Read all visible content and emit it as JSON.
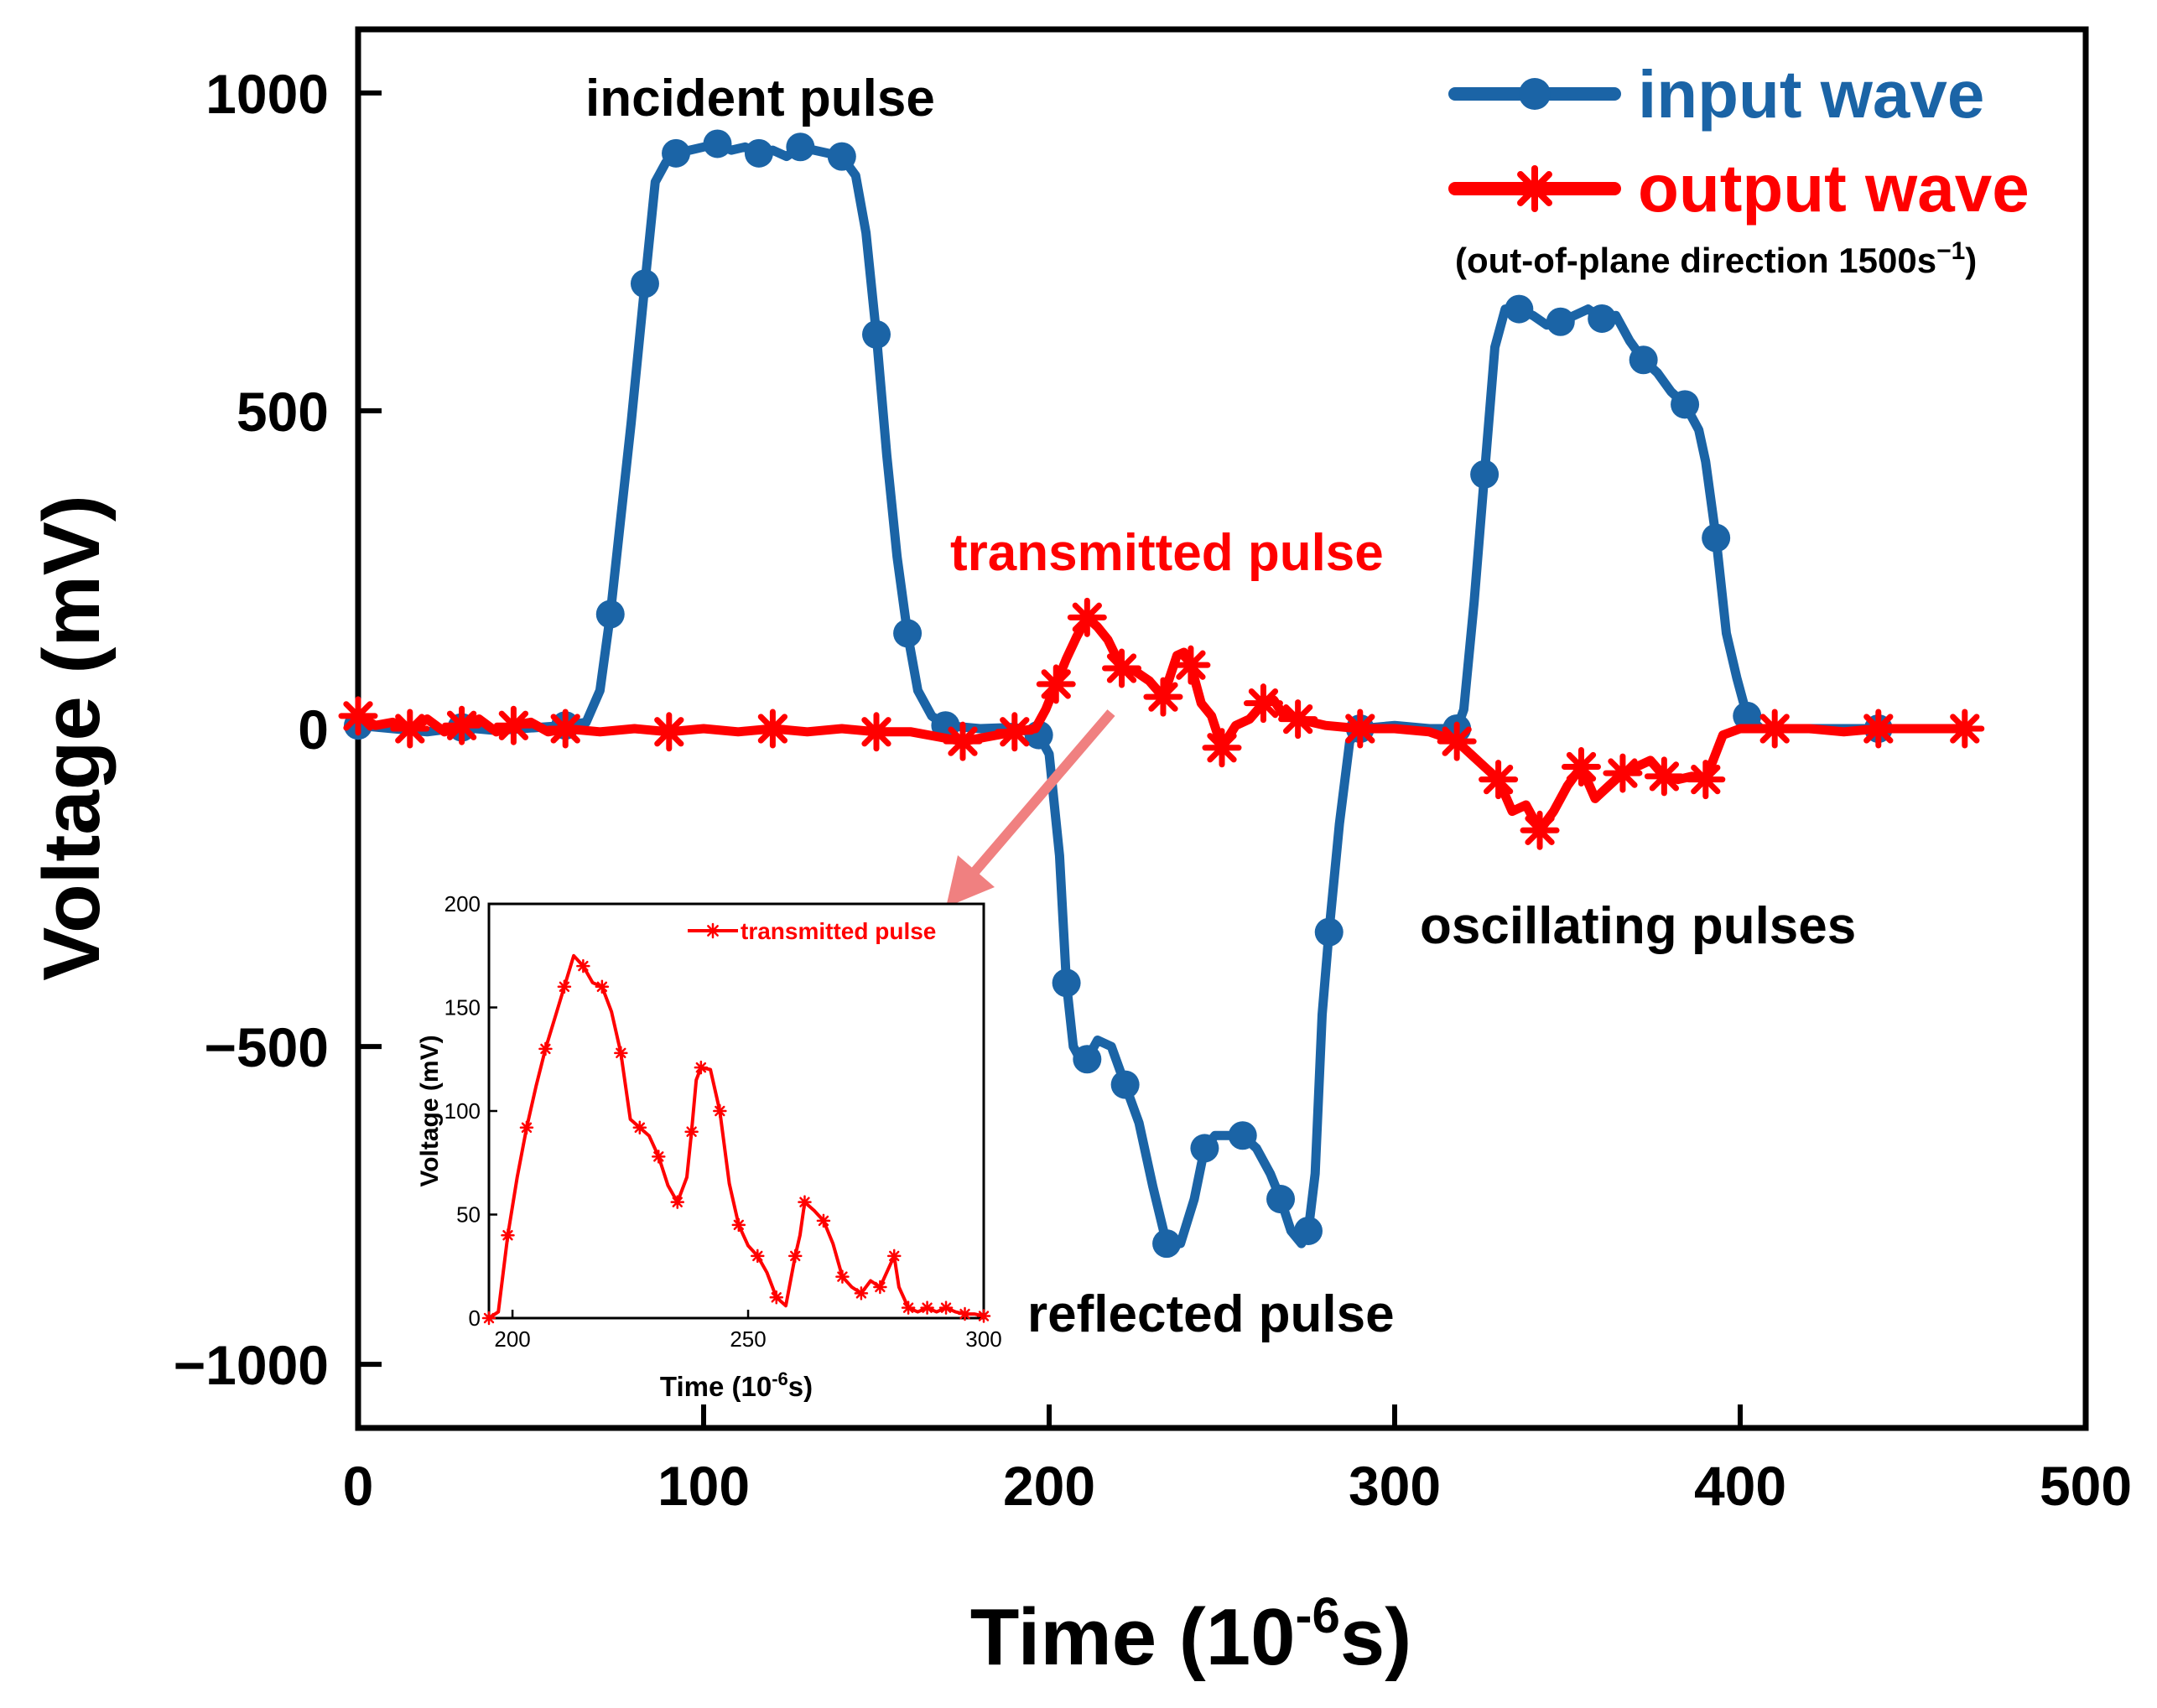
{
  "chart_data": {
    "type": "line",
    "xlabel": "Time (10",
    "xlabel_sup": "-6",
    "xlabel_tail": "s)",
    "ylabel": "Voltage (mV)",
    "xlim": [
      0,
      500
    ],
    "ylim": [
      -1100,
      1100
    ],
    "xticks": [
      0,
      100,
      200,
      300,
      400,
      500
    ],
    "yticks": [
      -1000,
      -500,
      0,
      500,
      1000
    ],
    "xtick_labels": [
      "0",
      "100",
      "200",
      "300",
      "400",
      "500"
    ],
    "ytick_labels": [
      "−1000",
      "−500",
      "0",
      "500",
      "1000"
    ],
    "legend": {
      "position": "top-right",
      "note": "(out-of-plane direction 1500s",
      "note_sup": "−1",
      "note_tail": ")"
    },
    "annotations": {
      "incident": "incident pulse",
      "transmitted": "transmitted pulse",
      "reflected": "reflected pulse",
      "oscillating": "oscillating pulses"
    },
    "series": [
      {
        "name": "input wave",
        "color": "#1b64a6",
        "marker": "circle",
        "x": [
          0,
          10,
          20,
          30,
          40,
          50,
          60,
          66,
          70,
          73,
          76,
          79,
          83,
          86,
          89,
          92,
          96,
          100,
          104,
          108,
          112,
          116,
          120,
          124,
          128,
          132,
          136,
          140,
          144,
          147,
          150,
          153,
          156,
          159,
          162,
          166,
          170,
          180,
          190,
          197,
          200,
          203,
          205,
          207,
          209,
          211,
          214,
          218,
          222,
          226,
          230,
          234,
          238,
          242,
          245,
          248,
          252,
          256,
          260,
          264,
          267,
          270,
          273,
          275,
          277,
          279,
          281,
          284,
          287,
          290,
          300,
          310,
          318,
          320,
          323,
          326,
          329,
          332,
          336,
          340,
          344,
          348,
          352,
          356,
          360,
          364,
          368,
          372,
          376,
          380,
          384,
          388,
          390,
          393,
          396,
          399,
          402,
          406,
          420,
          440,
          460
        ],
        "y": [
          5,
          0,
          -5,
          2,
          -3,
          1,
          5,
          10,
          60,
          180,
          330,
          480,
          700,
          860,
          890,
          905,
          910,
          915,
          920,
          910,
          915,
          905,
          910,
          900,
          915,
          910,
          905,
          900,
          870,
          780,
          620,
          430,
          270,
          150,
          60,
          20,
          5,
          0,
          2,
          -10,
          -40,
          -200,
          -400,
          -500,
          -520,
          -520,
          -490,
          -500,
          -560,
          -620,
          -720,
          -810,
          -810,
          -740,
          -660,
          -640,
          -640,
          -640,
          -660,
          -700,
          -740,
          -790,
          -810,
          -790,
          -700,
          -450,
          -320,
          -150,
          -20,
          0,
          5,
          0,
          0,
          30,
          200,
          400,
          600,
          660,
          660,
          650,
          635,
          640,
          650,
          660,
          645,
          650,
          610,
          580,
          560,
          530,
          510,
          470,
          420,
          300,
          150,
          80,
          20,
          0,
          0,
          0,
          0
        ]
      },
      {
        "name": "output wave",
        "color": "#ff0000",
        "marker": "asterisk",
        "x": [
          0,
          5,
          10,
          15,
          20,
          25,
          30,
          35,
          40,
          45,
          50,
          55,
          60,
          70,
          80,
          90,
          100,
          110,
          120,
          130,
          140,
          150,
          160,
          170,
          175,
          180,
          185,
          190,
          196,
          199,
          202,
          205,
          208,
          211,
          214,
          217,
          221,
          225,
          229,
          233,
          237,
          239,
          241,
          244,
          247,
          250,
          254,
          258,
          262,
          265,
          268,
          272,
          276,
          280,
          290,
          300,
          310,
          318,
          322,
          326,
          330,
          334,
          338,
          342,
          346,
          350,
          354,
          358,
          362,
          366,
          370,
          374,
          378,
          382,
          386,
          390,
          395,
          400,
          410,
          420,
          430,
          440,
          450,
          460,
          465
        ],
        "y": [
          20,
          5,
          10,
          0,
          15,
          -5,
          5,
          15,
          -5,
          5,
          10,
          -5,
          0,
          -5,
          0,
          -5,
          0,
          -5,
          0,
          -5,
          0,
          -5,
          -5,
          -15,
          -20,
          -15,
          -10,
          -5,
          0,
          30,
          70,
          110,
          145,
          175,
          160,
          140,
          95,
          90,
          75,
          50,
          115,
          120,
          100,
          40,
          20,
          -30,
          5,
          15,
          40,
          45,
          20,
          15,
          10,
          5,
          0,
          0,
          -5,
          -20,
          -40,
          -60,
          -80,
          -130,
          -120,
          -160,
          -130,
          -90,
          -60,
          -110,
          -90,
          -70,
          -60,
          -50,
          -75,
          -80,
          -75,
          -80,
          -10,
          0,
          0,
          0,
          -5,
          0,
          0,
          0,
          0
        ]
      }
    ],
    "inset": {
      "type": "line",
      "series_name": "transmitted pulse",
      "xlabel": "Time (10",
      "xlabel_sup": "-6",
      "xlabel_tail": "s)",
      "ylabel": "Voltage (mV)",
      "xlim": [
        195,
        300
      ],
      "ylim": [
        0,
        200
      ],
      "xticks": [
        200,
        250,
        300
      ],
      "yticks": [
        0,
        50,
        100,
        150,
        200
      ],
      "xtick_labels": [
        "200",
        "250",
        "300"
      ],
      "ytick_labels": [
        "0",
        "50",
        "100",
        "150",
        "200"
      ],
      "x": [
        195,
        197,
        199,
        201,
        203,
        205,
        207,
        209,
        211,
        213,
        215,
        217,
        219,
        221,
        223,
        225,
        227,
        229,
        231,
        233,
        235,
        237,
        238,
        239,
        240,
        242,
        244,
        246,
        248,
        250,
        252,
        254,
        256,
        258,
        260,
        261,
        262,
        264,
        266,
        268,
        270,
        272,
        274,
        276,
        278,
        280,
        281,
        282,
        284,
        286,
        288,
        290,
        292,
        294,
        296,
        298,
        300
      ],
      "y": [
        0,
        3,
        40,
        68,
        92,
        112,
        130,
        145,
        160,
        175,
        170,
        162,
        160,
        148,
        128,
        96,
        92,
        88,
        78,
        64,
        56,
        68,
        90,
        115,
        121,
        120,
        100,
        65,
        45,
        35,
        30,
        22,
        10,
        6,
        30,
        40,
        56,
        52,
        47,
        36,
        20,
        15,
        12,
        18,
        15,
        25,
        30,
        15,
        5,
        3,
        5,
        3,
        5,
        3,
        2,
        2,
        1
      ]
    }
  }
}
